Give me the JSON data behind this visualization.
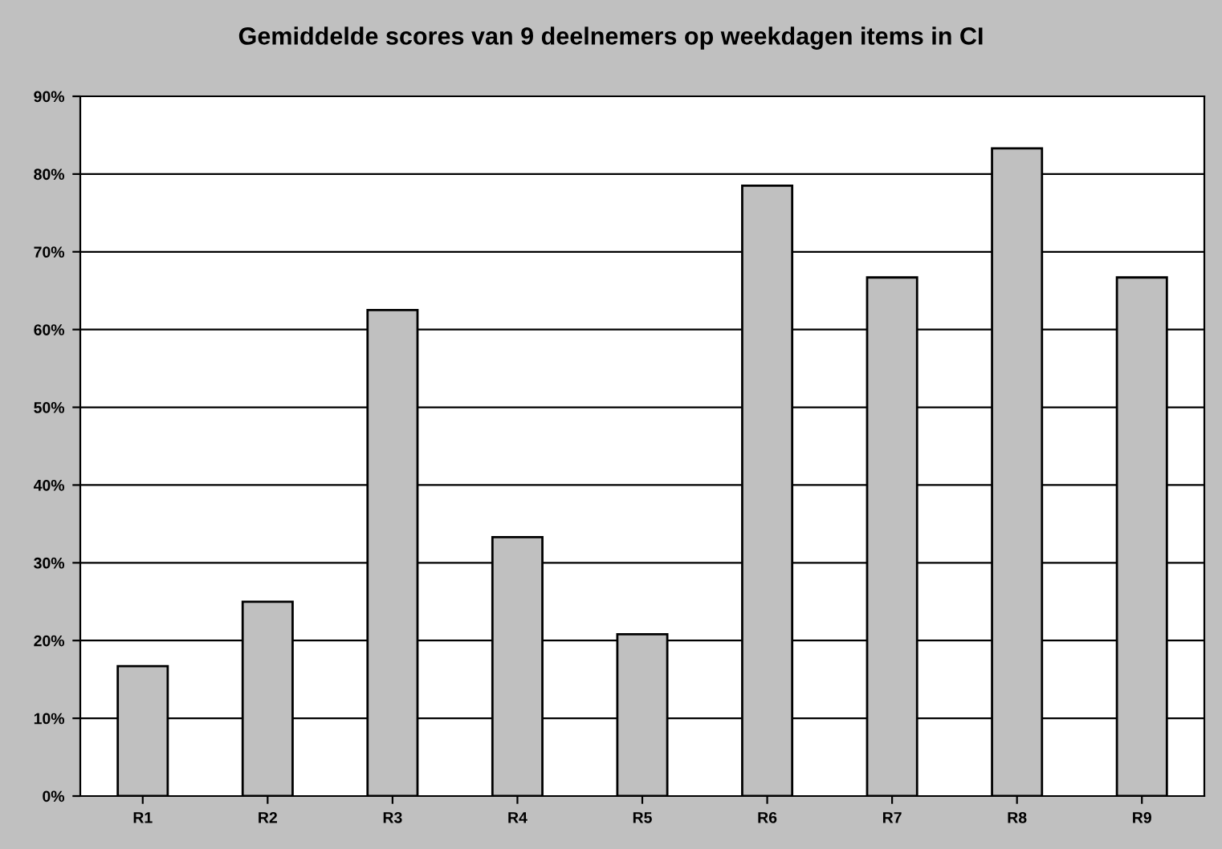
{
  "chart_data": {
    "type": "bar",
    "title": "Gemiddelde scores van 9 deelnemers op weekdagen items in CI",
    "categories": [
      "R1",
      "R2",
      "R3",
      "R4",
      "R5",
      "R6",
      "R7",
      "R8",
      "R9"
    ],
    "values": [
      16.7,
      25,
      62.5,
      33.3,
      20.8,
      78.5,
      66.7,
      83.3,
      66.7
    ],
    "color": "#c0c0c0",
    "ylim": [
      0,
      90
    ],
    "yticks": [
      {
        "value": 0,
        "label": "0%"
      },
      {
        "value": 10,
        "label": "10%"
      },
      {
        "value": 20,
        "label": "20%"
      },
      {
        "value": 30,
        "label": "30%"
      },
      {
        "value": 40,
        "label": "40%"
      },
      {
        "value": 50,
        "label": "50%"
      },
      {
        "value": 60,
        "label": "60%"
      },
      {
        "value": 70,
        "label": "70%"
      },
      {
        "value": 80,
        "label": "80%"
      },
      {
        "value": 90,
        "label": "90%"
      }
    ],
    "grid": "y",
    "legend": false
  }
}
